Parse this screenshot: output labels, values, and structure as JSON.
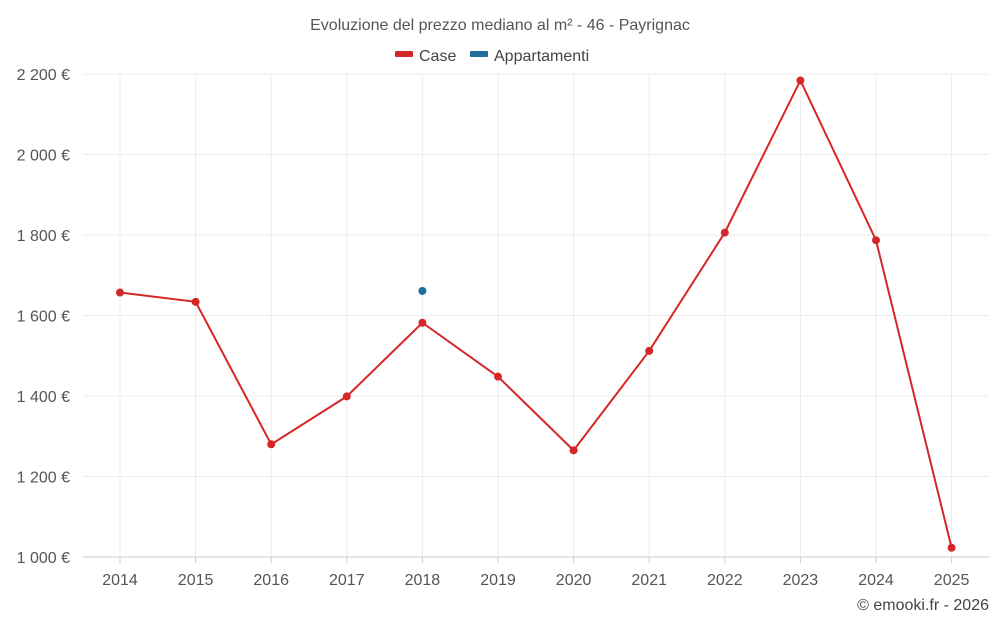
{
  "chart_data": {
    "type": "line",
    "title": "Evoluzione del prezzo mediano al m² - 46 - Payrignac",
    "categories": [
      "2014",
      "2015",
      "2016",
      "2017",
      "2018",
      "2019",
      "2020",
      "2021",
      "2022",
      "2023",
      "2024",
      "2025"
    ],
    "series": [
      {
        "name": "Case",
        "color": "#d62728",
        "values": [
          1657,
          1634,
          1280,
          1399,
          1582,
          1448,
          1265,
          1512,
          1806,
          2184,
          1787,
          1023
        ]
      },
      {
        "name": "Appartamenti",
        "color": "#1f6e9e",
        "values": [
          null,
          null,
          null,
          null,
          1661,
          null,
          null,
          null,
          null,
          null,
          null,
          null
        ]
      }
    ],
    "ylim": [
      1000,
      2200
    ],
    "yticks": [
      1000,
      1200,
      1400,
      1600,
      1800,
      2000,
      2200
    ],
    "ytick_labels": [
      "1 000 €",
      "1 200 €",
      "1 400 €",
      "1 600 €",
      "1 800 €",
      "2 000 €",
      "2 200 €"
    ],
    "xlabel": "",
    "ylabel": "",
    "grid": true,
    "legend_position": "top-center"
  },
  "credit": "© emooki.fr - 2026"
}
